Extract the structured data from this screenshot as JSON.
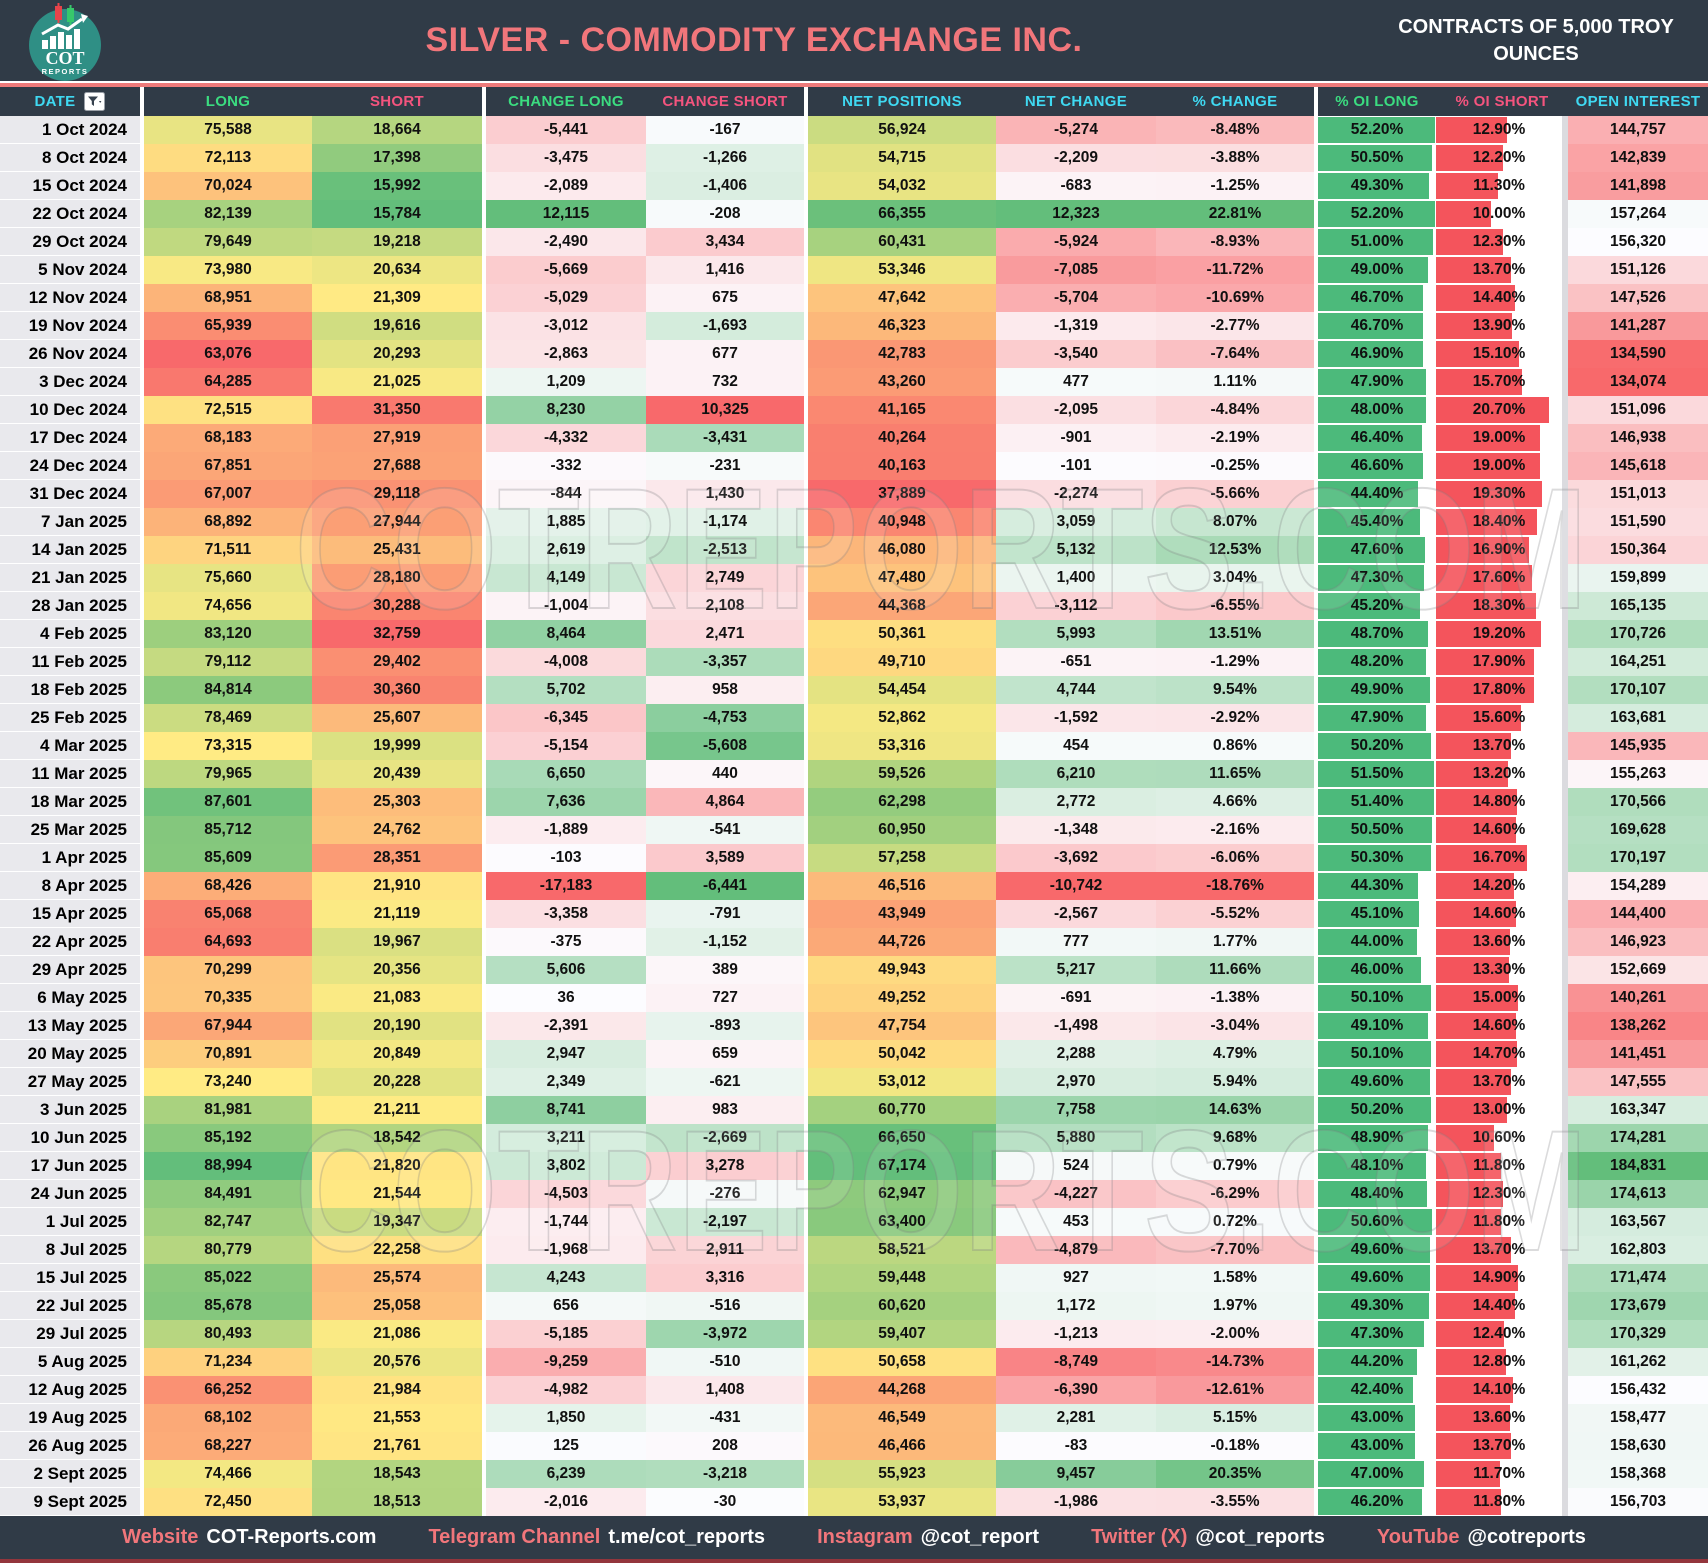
{
  "header": {
    "title": "SILVER - COMMODITY EXCHANGE INC.",
    "contracts_note": "CONTRACTS OF 5,000 TROY OUNCES",
    "logo": {
      "line1": "COT",
      "line2": "REPORTS"
    }
  },
  "watermark": "COTREPORTS.COM",
  "palette": {
    "header_bg": "#303B47",
    "title_color": "#F1767B",
    "accent_line": "#EF7B7B",
    "cyan": "#3FD9F2",
    "green": "#3BDC80",
    "pink": "#F4547E",
    "date_bg": "#E9E9ED",
    "bar_green": "#4CBA7B",
    "bar_red": "#F4545C",
    "scale_red": "#F8696B",
    "scale_yellow": "#FFEB84",
    "scale_green": "#63BE7B",
    "scale_white": "#FCFCFF",
    "logo_teal": "#2F8F85",
    "footer_bottom_line": "#93353C"
  },
  "columns": [
    {
      "label": "DATE",
      "color": "cyan"
    },
    {
      "label": "LONG",
      "color": "green"
    },
    {
      "label": "SHORT",
      "color": "pink"
    },
    {
      "label": "CHANGE LONG",
      "color": "green"
    },
    {
      "label": "CHANGE SHORT",
      "color": "pink"
    },
    {
      "label": "NET POSITIONS",
      "color": "cyan"
    },
    {
      "label": "NET CHANGE",
      "color": "cyan"
    },
    {
      "label": "% CHANGE",
      "color": "cyan"
    },
    {
      "label": "% OI LONG",
      "color": "green"
    },
    {
      "label": "% OI SHORT",
      "color": "pink"
    },
    {
      "label": "OPEN INTEREST",
      "color": "cyan"
    }
  ],
  "rows": [
    [
      "1 Oct 2024",
      "75,588",
      "18,664",
      "-5,441",
      "-167",
      "56,924",
      "-5,274",
      "-8.48%",
      "52.20%",
      "12.90%",
      "144,757"
    ],
    [
      "8 Oct 2024",
      "72,113",
      "17,398",
      "-3,475",
      "-1,266",
      "54,715",
      "-2,209",
      "-3.88%",
      "50.50%",
      "12.20%",
      "142,839"
    ],
    [
      "15 Oct 2024",
      "70,024",
      "15,992",
      "-2,089",
      "-1,406",
      "54,032",
      "-683",
      "-1.25%",
      "49.30%",
      "11.30%",
      "141,898"
    ],
    [
      "22 Oct 2024",
      "82,139",
      "15,784",
      "12,115",
      "-208",
      "66,355",
      "12,323",
      "22.81%",
      "52.20%",
      "10.00%",
      "157,264"
    ],
    [
      "29 Oct 2024",
      "79,649",
      "19,218",
      "-2,490",
      "3,434",
      "60,431",
      "-5,924",
      "-8.93%",
      "51.00%",
      "12.30%",
      "156,320"
    ],
    [
      "5 Nov 2024",
      "73,980",
      "20,634",
      "-5,669",
      "1,416",
      "53,346",
      "-7,085",
      "-11.72%",
      "49.00%",
      "13.70%",
      "151,126"
    ],
    [
      "12 Nov 2024",
      "68,951",
      "21,309",
      "-5,029",
      "675",
      "47,642",
      "-5,704",
      "-10.69%",
      "46.70%",
      "14.40%",
      "147,526"
    ],
    [
      "19 Nov 2024",
      "65,939",
      "19,616",
      "-3,012",
      "-1,693",
      "46,323",
      "-1,319",
      "-2.77%",
      "46.70%",
      "13.90%",
      "141,287"
    ],
    [
      "26 Nov 2024",
      "63,076",
      "20,293",
      "-2,863",
      "677",
      "42,783",
      "-3,540",
      "-7.64%",
      "46.90%",
      "15.10%",
      "134,590"
    ],
    [
      "3 Dec 2024",
      "64,285",
      "21,025",
      "1,209",
      "732",
      "43,260",
      "477",
      "1.11%",
      "47.90%",
      "15.70%",
      "134,074"
    ],
    [
      "10 Dec 2024",
      "72,515",
      "31,350",
      "8,230",
      "10,325",
      "41,165",
      "-2,095",
      "-4.84%",
      "48.00%",
      "20.70%",
      "151,096"
    ],
    [
      "17 Dec 2024",
      "68,183",
      "27,919",
      "-4,332",
      "-3,431",
      "40,264",
      "-901",
      "-2.19%",
      "46.40%",
      "19.00%",
      "146,938"
    ],
    [
      "24 Dec 2024",
      "67,851",
      "27,688",
      "-332",
      "-231",
      "40,163",
      "-101",
      "-0.25%",
      "46.60%",
      "19.00%",
      "145,618"
    ],
    [
      "31 Dec 2024",
      "67,007",
      "29,118",
      "-844",
      "1,430",
      "37,889",
      "-2,274",
      "-5.66%",
      "44.40%",
      "19.30%",
      "151,013"
    ],
    [
      "7 Jan 2025",
      "68,892",
      "27,944",
      "1,885",
      "-1,174",
      "40,948",
      "3,059",
      "8.07%",
      "45.40%",
      "18.40%",
      "151,590"
    ],
    [
      "14 Jan 2025",
      "71,511",
      "25,431",
      "2,619",
      "-2,513",
      "46,080",
      "5,132",
      "12.53%",
      "47.60%",
      "16.90%",
      "150,364"
    ],
    [
      "21 Jan 2025",
      "75,660",
      "28,180",
      "4,149",
      "2,749",
      "47,480",
      "1,400",
      "3.04%",
      "47.30%",
      "17.60%",
      "159,899"
    ],
    [
      "28 Jan 2025",
      "74,656",
      "30,288",
      "-1,004",
      "2,108",
      "44,368",
      "-3,112",
      "-6.55%",
      "45.20%",
      "18.30%",
      "165,135"
    ],
    [
      "4 Feb 2025",
      "83,120",
      "32,759",
      "8,464",
      "2,471",
      "50,361",
      "5,993",
      "13.51%",
      "48.70%",
      "19.20%",
      "170,726"
    ],
    [
      "11 Feb 2025",
      "79,112",
      "29,402",
      "-4,008",
      "-3,357",
      "49,710",
      "-651",
      "-1.29%",
      "48.20%",
      "17.90%",
      "164,251"
    ],
    [
      "18 Feb 2025",
      "84,814",
      "30,360",
      "5,702",
      "958",
      "54,454",
      "4,744",
      "9.54%",
      "49.90%",
      "17.80%",
      "170,107"
    ],
    [
      "25 Feb 2025",
      "78,469",
      "25,607",
      "-6,345",
      "-4,753",
      "52,862",
      "-1,592",
      "-2.92%",
      "47.90%",
      "15.60%",
      "163,681"
    ],
    [
      "4 Mar 2025",
      "73,315",
      "19,999",
      "-5,154",
      "-5,608",
      "53,316",
      "454",
      "0.86%",
      "50.20%",
      "13.70%",
      "145,935"
    ],
    [
      "11 Mar 2025",
      "79,965",
      "20,439",
      "6,650",
      "440",
      "59,526",
      "6,210",
      "11.65%",
      "51.50%",
      "13.20%",
      "155,263"
    ],
    [
      "18 Mar 2025",
      "87,601",
      "25,303",
      "7,636",
      "4,864",
      "62,298",
      "2,772",
      "4.66%",
      "51.40%",
      "14.80%",
      "170,566"
    ],
    [
      "25 Mar 2025",
      "85,712",
      "24,762",
      "-1,889",
      "-541",
      "60,950",
      "-1,348",
      "-2.16%",
      "50.50%",
      "14.60%",
      "169,628"
    ],
    [
      "1 Apr 2025",
      "85,609",
      "28,351",
      "-103",
      "3,589",
      "57,258",
      "-3,692",
      "-6.06%",
      "50.30%",
      "16.70%",
      "170,197"
    ],
    [
      "8 Apr 2025",
      "68,426",
      "21,910",
      "-17,183",
      "-6,441",
      "46,516",
      "-10,742",
      "-18.76%",
      "44.30%",
      "14.20%",
      "154,289"
    ],
    [
      "15 Apr 2025",
      "65,068",
      "21,119",
      "-3,358",
      "-791",
      "43,949",
      "-2,567",
      "-5.52%",
      "45.10%",
      "14.60%",
      "144,400"
    ],
    [
      "22 Apr 2025",
      "64,693",
      "19,967",
      "-375",
      "-1,152",
      "44,726",
      "777",
      "1.77%",
      "44.00%",
      "13.60%",
      "146,923"
    ],
    [
      "29 Apr 2025",
      "70,299",
      "20,356",
      "5,606",
      "389",
      "49,943",
      "5,217",
      "11.66%",
      "46.00%",
      "13.30%",
      "152,669"
    ],
    [
      "6 May 2025",
      "70,335",
      "21,083",
      "36",
      "727",
      "49,252",
      "-691",
      "-1.38%",
      "50.10%",
      "15.00%",
      "140,261"
    ],
    [
      "13 May 2025",
      "67,944",
      "20,190",
      "-2,391",
      "-893",
      "47,754",
      "-1,498",
      "-3.04%",
      "49.10%",
      "14.60%",
      "138,262"
    ],
    [
      "20 May 2025",
      "70,891",
      "20,849",
      "2,947",
      "659",
      "50,042",
      "2,288",
      "4.79%",
      "50.10%",
      "14.70%",
      "141,451"
    ],
    [
      "27 May 2025",
      "73,240",
      "20,228",
      "2,349",
      "-621",
      "53,012",
      "2,970",
      "5.94%",
      "49.60%",
      "13.70%",
      "147,555"
    ],
    [
      "3 Jun 2025",
      "81,981",
      "21,211",
      "8,741",
      "983",
      "60,770",
      "7,758",
      "14.63%",
      "50.20%",
      "13.00%",
      "163,347"
    ],
    [
      "10 Jun 2025",
      "85,192",
      "18,542",
      "3,211",
      "-2,669",
      "66,650",
      "5,880",
      "9.68%",
      "48.90%",
      "10.60%",
      "174,281"
    ],
    [
      "17 Jun 2025",
      "88,994",
      "21,820",
      "3,802",
      "3,278",
      "67,174",
      "524",
      "0.79%",
      "48.10%",
      "11.80%",
      "184,831"
    ],
    [
      "24 Jun 2025",
      "84,491",
      "21,544",
      "-4,503",
      "-276",
      "62,947",
      "-4,227",
      "-6.29%",
      "48.40%",
      "12.30%",
      "174,613"
    ],
    [
      "1 Jul 2025",
      "82,747",
      "19,347",
      "-1,744",
      "-2,197",
      "63,400",
      "453",
      "0.72%",
      "50.60%",
      "11.80%",
      "163,567"
    ],
    [
      "8 Jul 2025",
      "80,779",
      "22,258",
      "-1,968",
      "2,911",
      "58,521",
      "-4,879",
      "-7.70%",
      "49.60%",
      "13.70%",
      "162,803"
    ],
    [
      "15 Jul 2025",
      "85,022",
      "25,574",
      "4,243",
      "3,316",
      "59,448",
      "927",
      "1.58%",
      "49.60%",
      "14.90%",
      "171,474"
    ],
    [
      "22 Jul 2025",
      "85,678",
      "25,058",
      "656",
      "-516",
      "60,620",
      "1,172",
      "1.97%",
      "49.30%",
      "14.40%",
      "173,679"
    ],
    [
      "29 Jul 2025",
      "80,493",
      "21,086",
      "-5,185",
      "-3,972",
      "59,407",
      "-1,213",
      "-2.00%",
      "47.30%",
      "12.40%",
      "170,329"
    ],
    [
      "5 Aug 2025",
      "71,234",
      "20,576",
      "-9,259",
      "-510",
      "50,658",
      "-8,749",
      "-14.73%",
      "44.20%",
      "12.80%",
      "161,262"
    ],
    [
      "12 Aug 2025",
      "66,252",
      "21,984",
      "-4,982",
      "1,408",
      "44,268",
      "-6,390",
      "-12.61%",
      "42.40%",
      "14.10%",
      "156,432"
    ],
    [
      "19 Aug 2025",
      "68,102",
      "21,553",
      "1,850",
      "-431",
      "46,549",
      "2,281",
      "5.15%",
      "43.00%",
      "13.60%",
      "158,477"
    ],
    [
      "26 Aug 2025",
      "68,227",
      "21,761",
      "125",
      "208",
      "46,466",
      "-83",
      "-0.18%",
      "43.00%",
      "13.70%",
      "158,630"
    ],
    [
      "2 Sept 2025",
      "74,466",
      "18,543",
      "6,239",
      "-3,218",
      "55,923",
      "9,457",
      "20.35%",
      "47.00%",
      "11.70%",
      "158,368"
    ],
    [
      "9 Sept 2025",
      "72,450",
      "18,513",
      "-2,016",
      "-30",
      "53,937",
      "-1,986",
      "-3.55%",
      "46.20%",
      "11.80%",
      "156,703"
    ]
  ],
  "footer": {
    "items": [
      {
        "label": "Website",
        "value": "COT-Reports.com"
      },
      {
        "label": "Telegram Channel",
        "value": "t.me/cot_reports"
      },
      {
        "label": "Instagram",
        "value": "@cot_report"
      },
      {
        "label": "Twitter (X)",
        "value": "@cot_reports"
      },
      {
        "label": "YouTube",
        "value": "@cotreports"
      }
    ]
  }
}
